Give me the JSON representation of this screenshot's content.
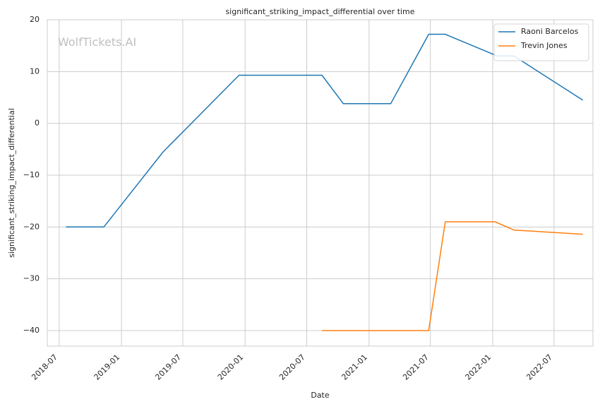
{
  "chart_data": {
    "type": "line",
    "title": "significant_striking_impact_differential over time",
    "xlabel": "Date",
    "ylabel": "significant_striking_impact_differential",
    "watermark": "WolfTickets.AI",
    "ylim": [
      -43,
      20
    ],
    "xlim": [
      "2018-05-27",
      "2022-10-24"
    ],
    "grid": true,
    "legend_position": "top-right",
    "x_ticks": [
      "2018-07",
      "2019-01",
      "2019-07",
      "2020-01",
      "2020-07",
      "2021-01",
      "2021-07",
      "2022-01",
      "2022-07"
    ],
    "y_ticks": [
      "20",
      "10",
      "0",
      "−10",
      "−20",
      "−30",
      "−40"
    ],
    "y_tick_values": [
      20,
      10,
      0,
      -10,
      -20,
      -30,
      -40
    ],
    "series": [
      {
        "name": "Raoni Barcelos",
        "color": "#1f77b4",
        "points": [
          {
            "x": "2018-07-21",
            "y": -20.0
          },
          {
            "x": "2018-11-10",
            "y": -20.0
          },
          {
            "x": "2019-05-04",
            "y": -5.5
          },
          {
            "x": "2019-12-14",
            "y": 9.3
          },
          {
            "x": "2020-08-15",
            "y": 9.3
          },
          {
            "x": "2020-10-17",
            "y": 3.8
          },
          {
            "x": "2021-03-06",
            "y": 3.8
          },
          {
            "x": "2021-06-26",
            "y": 17.2
          },
          {
            "x": "2021-08-14",
            "y": 17.2
          },
          {
            "x": "2022-01-15",
            "y": 13.0
          },
          {
            "x": "2022-03-05",
            "y": 13.0
          },
          {
            "x": "2022-09-24",
            "y": 4.5
          }
        ]
      },
      {
        "name": "Trevin Jones",
        "color": "#ff7f0e",
        "points": [
          {
            "x": "2020-08-15",
            "y": -40.0
          },
          {
            "x": "2021-06-26",
            "y": -40.0
          },
          {
            "x": "2021-08-14",
            "y": -19.0
          },
          {
            "x": "2022-01-08",
            "y": -19.0
          },
          {
            "x": "2022-03-05",
            "y": -20.6
          },
          {
            "x": "2022-09-24",
            "y": -21.4
          }
        ]
      }
    ]
  }
}
